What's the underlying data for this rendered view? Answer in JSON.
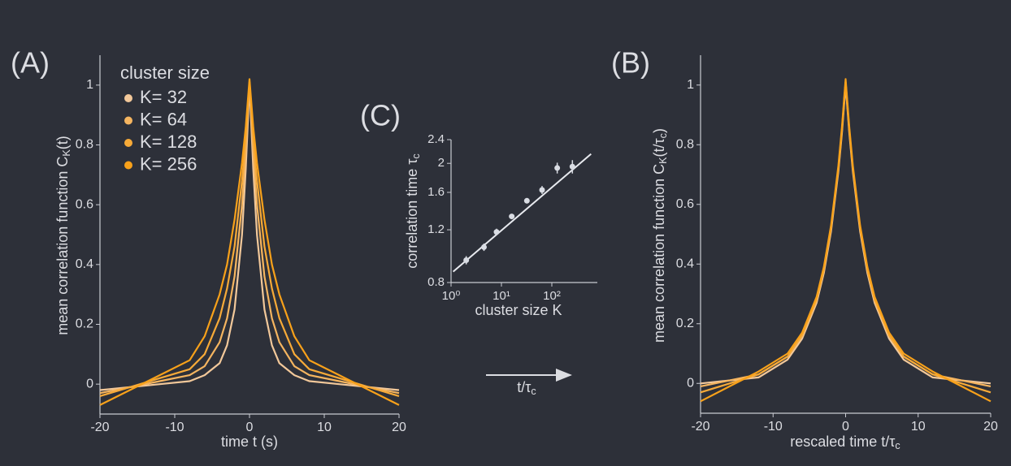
{
  "chart_data": [
    {
      "type": "line",
      "title": "(A)",
      "legend_title": "cluster size",
      "xlabel": [
        "time t (s)"
      ],
      "ylabel": [
        "mean correlation function C",
        "K",
        "(t)"
      ],
      "xlim": [
        -20,
        20
      ],
      "ylim": [
        -0.1,
        1.1
      ],
      "xticks": [
        -20,
        -10,
        0,
        10,
        20
      ],
      "yticks": [
        0,
        0.2,
        0.4,
        0.6,
        0.8,
        1
      ],
      "x": [
        -20,
        -16,
        -12,
        -8,
        -6,
        -4,
        -3,
        -2,
        -1,
        -0.5,
        0,
        0.5,
        1,
        2,
        3,
        4,
        6,
        8,
        12,
        16,
        20
      ],
      "series": [
        {
          "name": "K= 32",
          "color": "#f2c89a",
          "values": [
            -0.02,
            -0.01,
            0,
            0.01,
            0.03,
            0.07,
            0.13,
            0.25,
            0.5,
            0.72,
            1.0,
            0.72,
            0.5,
            0.25,
            0.13,
            0.07,
            0.03,
            0.01,
            0,
            -0.01,
            -0.02
          ]
        },
        {
          "name": "K= 64",
          "color": "#f5b560",
          "values": [
            -0.03,
            -0.01,
            0.01,
            0.03,
            0.06,
            0.14,
            0.22,
            0.36,
            0.6,
            0.78,
            1.01,
            0.78,
            0.6,
            0.36,
            0.22,
            0.14,
            0.06,
            0.03,
            0.01,
            -0.01,
            -0.03
          ]
        },
        {
          "name": "K= 128",
          "color": "#f7aa38",
          "values": [
            -0.04,
            -0.01,
            0.02,
            0.05,
            0.1,
            0.22,
            0.32,
            0.46,
            0.68,
            0.82,
            1.01,
            0.82,
            0.68,
            0.46,
            0.32,
            0.22,
            0.1,
            0.05,
            0.02,
            -0.01,
            -0.04
          ]
        },
        {
          "name": "K= 256",
          "color": "#f8a11a",
          "values": [
            -0.07,
            -0.02,
            0.03,
            0.08,
            0.16,
            0.3,
            0.4,
            0.55,
            0.74,
            0.86,
            1.02,
            0.86,
            0.74,
            0.55,
            0.4,
            0.3,
            0.16,
            0.08,
            0.03,
            -0.02,
            -0.07
          ]
        }
      ]
    },
    {
      "type": "line",
      "title": "(B)",
      "xlabel": [
        "rescaled time t/τ",
        "c"
      ],
      "ylabel": [
        "mean correlation function C",
        "K",
        "(t/τ",
        "c",
        ")"
      ],
      "xlim": [
        -20,
        20
      ],
      "ylim": [
        -0.1,
        1.1
      ],
      "xticks": [
        -20,
        -10,
        0,
        10,
        20
      ],
      "yticks": [
        0,
        0.2,
        0.4,
        0.6,
        0.8,
        1
      ],
      "x": [
        -20,
        -16,
        -12,
        -8,
        -6,
        -4,
        -3,
        -2,
        -1,
        -0.5,
        0,
        0.5,
        1,
        2,
        3,
        4,
        6,
        8,
        12,
        16,
        20
      ],
      "series": [
        {
          "color": "#f2c89a",
          "values": [
            0,
            0.01,
            0.02,
            0.08,
            0.15,
            0.27,
            0.37,
            0.51,
            0.71,
            0.84,
            1.0,
            0.84,
            0.71,
            0.51,
            0.37,
            0.27,
            0.15,
            0.08,
            0.02,
            0.01,
            0
          ]
        },
        {
          "color": "#f5b560",
          "values": [
            -0.01,
            0.01,
            0.03,
            0.09,
            0.16,
            0.28,
            0.38,
            0.52,
            0.72,
            0.85,
            1.01,
            0.85,
            0.72,
            0.52,
            0.38,
            0.28,
            0.16,
            0.09,
            0.03,
            0.01,
            -0.01
          ]
        },
        {
          "color": "#f7aa38",
          "values": [
            -0.03,
            0,
            0.03,
            0.09,
            0.16,
            0.28,
            0.38,
            0.52,
            0.72,
            0.85,
            1.01,
            0.85,
            0.72,
            0.52,
            0.38,
            0.28,
            0.16,
            0.09,
            0.03,
            0,
            -0.03
          ]
        },
        {
          "color": "#f8a11a",
          "values": [
            -0.06,
            -0.01,
            0.04,
            0.1,
            0.17,
            0.29,
            0.39,
            0.53,
            0.73,
            0.86,
            1.02,
            0.86,
            0.73,
            0.53,
            0.39,
            0.29,
            0.17,
            0.1,
            0.04,
            -0.01,
            -0.06
          ]
        }
      ]
    },
    {
      "type": "scatter",
      "title": "(C)",
      "xlabel": [
        "cluster size K"
      ],
      "ylabel": [
        "correlation time τ",
        "c"
      ],
      "xscale": "log",
      "yscale": "log",
      "xlim": [
        1,
        800
      ],
      "ylim": [
        0.8,
        2.4
      ],
      "xticks": [
        {
          "value": 1,
          "label": "10⁰"
        },
        {
          "value": 10,
          "label": "10¹"
        },
        {
          "value": 100,
          "label": "10²"
        }
      ],
      "yticks": [
        0.8,
        1.2,
        1.6,
        2,
        2.4
      ],
      "series": [
        {
          "color": "#d9dce3",
          "x": [
            2,
            4.5,
            8,
            16,
            32,
            64,
            128,
            256
          ],
          "values": [
            0.95,
            1.05,
            1.18,
            1.33,
            1.5,
            1.63,
            1.93,
            1.95
          ],
          "errors": [
            0.03,
            0.03,
            0.03,
            0.02,
            0.03,
            0.05,
            0.08,
            0.1
          ]
        }
      ],
      "fit": {
        "color": "#e8eaef",
        "x": [
          1.1,
          600
        ],
        "values": [
          0.87,
          2.15
        ]
      }
    }
  ],
  "annotation": {
    "text": [
      "t/τ",
      "c"
    ]
  }
}
